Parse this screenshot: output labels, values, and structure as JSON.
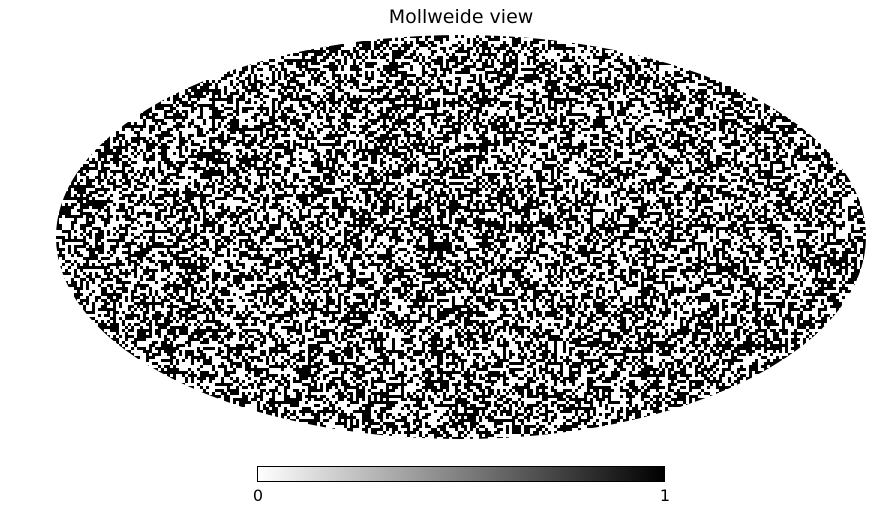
{
  "title": "Mollweide view",
  "projection": "mollweide",
  "colormap": "binary",
  "colormap_low_color": "#ffffff",
  "colormap_high_color": "#000000",
  "chart_data": {
    "type": "heatmap",
    "title": "Mollweide view",
    "projection": "mollweide",
    "value_range": [
      0,
      1
    ],
    "pixel_values": "random binary field (0 or 1), roughly half of pixels equal 1",
    "colorbar": {
      "orientation": "horizontal",
      "tick_labels": [
        "0",
        "1"
      ],
      "min": 0,
      "max": 1
    }
  }
}
